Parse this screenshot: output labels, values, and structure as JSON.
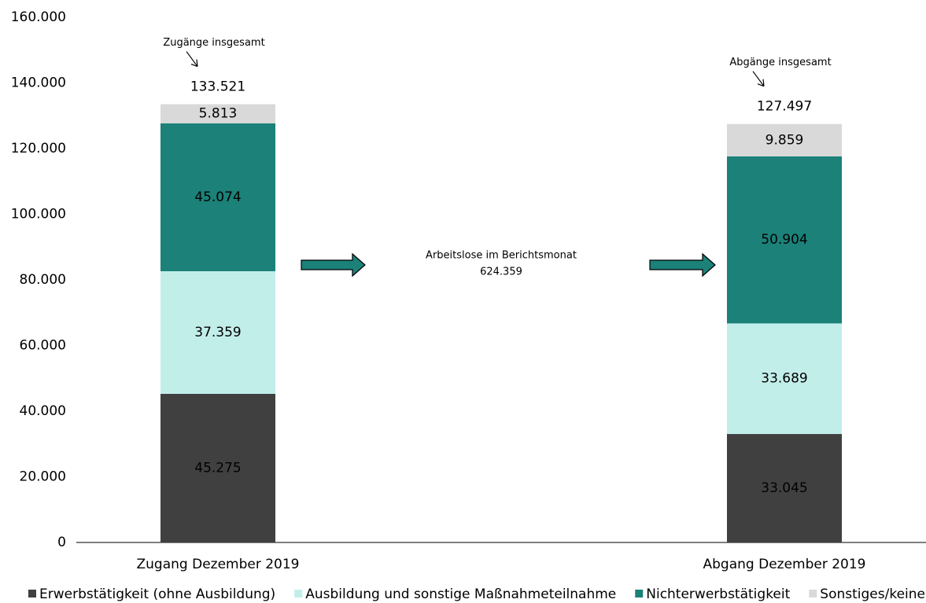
{
  "chart_data": {
    "type": "stacked_bar",
    "categories": [
      "Zugang Dezember 2019",
      null,
      "Abgang Dezember 2019"
    ],
    "series": [
      {
        "name": "Erwerbstätigkeit (ohne Ausbildung)",
        "color": "#404040",
        "values": [
          45275,
          null,
          33045
        ],
        "value_labels": [
          "45.275",
          null,
          "33.045"
        ]
      },
      {
        "name": "Ausbildung und sonstige Maßnahmeteilnahme",
        "color": "#c2eeea",
        "values": [
          37359,
          null,
          33689
        ],
        "value_labels": [
          "37.359",
          null,
          "33.689"
        ]
      },
      {
        "name": "Nichterwerbstätigkeit",
        "color": "#1b8179",
        "values": [
          45074,
          null,
          50904
        ],
        "value_labels": [
          "45.074",
          null,
          "50.904"
        ]
      },
      {
        "name": "Sonstiges/keine Angabe",
        "color": "#d9d9d9",
        "values": [
          5813,
          null,
          9859
        ],
        "value_labels": [
          "5.813",
          null,
          "9.859"
        ]
      }
    ],
    "totals": {
      "values": [
        133521,
        null,
        127497
      ],
      "value_labels": [
        "133.521",
        null,
        "127.497"
      ]
    },
    "callouts": [
      "Zugänge insgesamt",
      null,
      "Abgänge insgesamt"
    ],
    "middle_annotation": [
      "Arbeitslose im Berichtsmonat",
      "624.359"
    ],
    "ylim": [
      0,
      160000
    ],
    "yticks": [
      0,
      {
        "value": 20000,
        "label": "20.000"
      },
      {
        "value": 40000,
        "label": "40.000"
      },
      {
        "value": 60000,
        "label": "60.000"
      },
      {
        "value": 80000,
        "label": "80.000"
      },
      {
        "value": 100000,
        "label": "100.000"
      },
      {
        "value": 120000,
        "label": "120.000"
      },
      {
        "value": 140000,
        "label": "140.000"
      },
      {
        "value": 160000,
        "label": "160.000"
      }
    ],
    "grid": false,
    "legend": "bottom"
  }
}
